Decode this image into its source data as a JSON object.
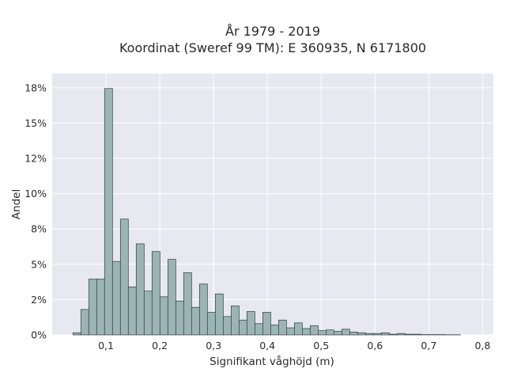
{
  "chart_data": {
    "type": "bar",
    "title": "År 1979 - 2019",
    "subtitle": "Koordinat (Sweref 99 TM): E 360935, N 6171800",
    "xlabel": "Signifikant våghöjd (m)",
    "ylabel": "Andel",
    "xlim": [
      0.0,
      0.82
    ],
    "ylim": [
      0,
      18.5
    ],
    "grid": true,
    "x_ticks": [
      {
        "value": 0.1,
        "label": "0,1"
      },
      {
        "value": 0.2,
        "label": "0,2"
      },
      {
        "value": 0.3,
        "label": "0,3"
      },
      {
        "value": 0.4,
        "label": "0,4"
      },
      {
        "value": 0.5,
        "label": "0,5"
      },
      {
        "value": 0.6,
        "label": "0,6"
      },
      {
        "value": 0.7,
        "label": "0,7"
      },
      {
        "value": 0.8,
        "label": "0,8"
      }
    ],
    "y_ticks": [
      {
        "value": 0,
        "label": "0%"
      },
      {
        "value": 2.5,
        "label": "2%"
      },
      {
        "value": 5,
        "label": "5%"
      },
      {
        "value": 7.5,
        "label": "8%"
      },
      {
        "value": 10,
        "label": "10%"
      },
      {
        "value": 12.5,
        "label": "12%"
      },
      {
        "value": 15,
        "label": "15%"
      },
      {
        "value": 17.5,
        "label": "18%"
      }
    ],
    "bin_width": 0.0147,
    "bins_start": [
      0.0386,
      0.0533,
      0.068,
      0.0827,
      0.0974,
      0.1121,
      0.1268,
      0.1415,
      0.1562,
      0.1709,
      0.1856,
      0.2003,
      0.215,
      0.2297,
      0.2444,
      0.2591,
      0.2738,
      0.2885,
      0.3032,
      0.3179,
      0.3326,
      0.3473,
      0.362,
      0.3767,
      0.3914,
      0.4061,
      0.4208,
      0.4355,
      0.4502,
      0.4649,
      0.4796,
      0.4943,
      0.509,
      0.5237,
      0.5384,
      0.5531,
      0.5678,
      0.5825,
      0.5972,
      0.6119,
      0.6266,
      0.6413,
      0.656,
      0.6707,
      0.6854,
      0.7001,
      0.7148,
      0.7295,
      0.7442,
      0.7589
    ],
    "values": [
      0.15,
      1.8,
      3.95,
      3.95,
      17.45,
      5.2,
      8.2,
      3.4,
      6.45,
      3.1,
      5.9,
      2.7,
      5.35,
      2.4,
      4.4,
      1.95,
      3.6,
      1.6,
      2.9,
      1.3,
      2.05,
      1.05,
      1.65,
      0.8,
      1.6,
      0.7,
      1.05,
      0.5,
      0.85,
      0.45,
      0.65,
      0.3,
      0.35,
      0.25,
      0.4,
      0.2,
      0.15,
      0.1,
      0.1,
      0.15,
      0.05,
      0.1,
      0.05,
      0.05,
      0.02,
      0.02,
      0.02,
      0.01,
      0.01,
      0.0
    ]
  },
  "colors": {
    "plot_bg": "#e8e8f0",
    "grid": "#ffffff",
    "bar_fill": "#9bb5b4",
    "bar_edge": "#2f3a3a"
  }
}
